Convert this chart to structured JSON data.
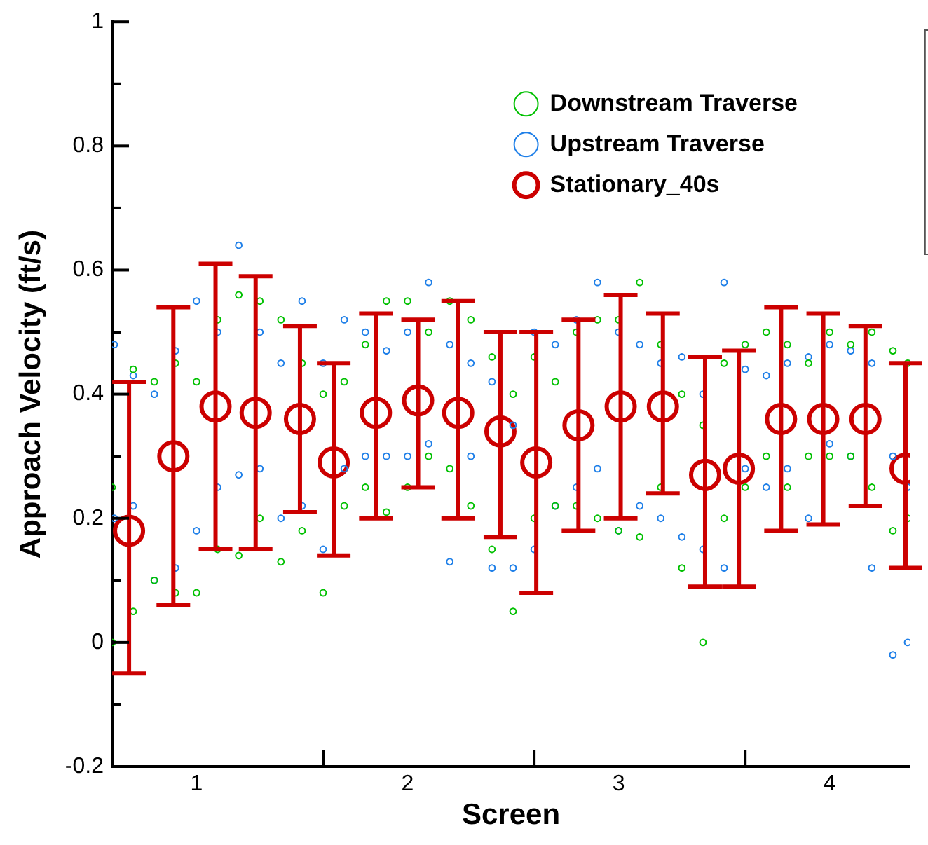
{
  "chart_data": {
    "type": "scatter",
    "xlabel": "Screen",
    "ylabel": "Approach Velocity (ft/s)",
    "xlim": [
      0.6,
      4.38
    ],
    "ylim": [
      -0.2,
      1
    ],
    "xticks": [
      1,
      {
        "value": 1.6,
        "label": null
      },
      2,
      {
        "value": 2.6,
        "label": null
      },
      3,
      {
        "value": 3.6,
        "label": null
      },
      4
    ],
    "yticks": [
      -0.2,
      {
        "value": -0.1,
        "label": null
      },
      0,
      {
        "value": 0.1,
        "label": null
      },
      0.2,
      {
        "value": 0.3,
        "label": null
      },
      0.4,
      {
        "value": 0.5,
        "label": null
      },
      0.6,
      {
        "value": 0.7,
        "label": null
      },
      0.8,
      {
        "value": 0.9,
        "label": null
      },
      1
    ],
    "legend": "top right",
    "marker": "circle",
    "series": [
      {
        "name": "Downstream Traverse",
        "color": "#00c000",
        "x": [
          0.6,
          0.6,
          0.7,
          0.7,
          0.8,
          0.8,
          0.9,
          0.9,
          1,
          1,
          1.1,
          1.1,
          1.2,
          1.2,
          1.3,
          1.3,
          1.4,
          1.4,
          1.5,
          1.5,
          1.6,
          1.6,
          1.7,
          1.7,
          1.8,
          1.8,
          1.9,
          1.9,
          2,
          2,
          2.1,
          2.1,
          2.2,
          2.2,
          2.3,
          2.3,
          2.4,
          2.4,
          2.5,
          2.5,
          2.6,
          2.6,
          2.7,
          2.7,
          2.8,
          2.8,
          2.9,
          2.9,
          3,
          3,
          3.1,
          3.1,
          3.2,
          3.2,
          3.3,
          3.3,
          3.4,
          3.4,
          3.5,
          3.5,
          3.6,
          3.6,
          3.7,
          3.7,
          3.8,
          3.8,
          3.9,
          3.9,
          4,
          4,
          4.1,
          4.1,
          4.2,
          4.2,
          4.3,
          4.3,
          4.37,
          4.37
        ],
        "values": [
          0.25,
          0,
          0.44,
          0.05,
          0.42,
          0.1,
          0.45,
          0.08,
          0.42,
          0.08,
          0.52,
          0.15,
          0.56,
          0.14,
          0.55,
          0.2,
          0.52,
          0.13,
          0.45,
          0.18,
          0.4,
          0.08,
          0.42,
          0.22,
          0.48,
          0.25,
          0.55,
          0.21,
          0.55,
          0.25,
          0.5,
          0.3,
          0.55,
          0.28,
          0.52,
          0.22,
          0.46,
          0.15,
          0.4,
          0.05,
          0.46,
          0.2,
          0.42,
          0.22,
          0.5,
          0.22,
          0.52,
          0.2,
          0.52,
          0.18,
          0.58,
          0.17,
          0.48,
          0.25,
          0.4,
          0.12,
          0.35,
          0,
          0.45,
          0.2,
          0.48,
          0.25,
          0.5,
          0.3,
          0.48,
          0.25,
          0.45,
          0.3,
          0.5,
          0.3,
          0.48,
          0.3,
          0.5,
          0.25,
          0.47,
          0.18,
          0.45,
          0.2
        ]
      },
      {
        "name": "Upstream Traverse",
        "color": "#1e7fe8",
        "x": [
          0.61,
          0.61,
          0.7,
          0.7,
          0.8,
          0.8,
          0.9,
          0.9,
          1,
          1,
          1.1,
          1.1,
          1.2,
          1.2,
          1.3,
          1.3,
          1.4,
          1.4,
          1.5,
          1.5,
          1.6,
          1.6,
          1.7,
          1.7,
          1.8,
          1.8,
          1.9,
          1.9,
          2,
          2,
          2.1,
          2.1,
          2.2,
          2.2,
          2.3,
          2.3,
          2.4,
          2.4,
          2.5,
          2.5,
          2.6,
          2.6,
          2.7,
          2.7,
          2.8,
          2.8,
          2.9,
          2.9,
          3,
          3,
          3.1,
          3.1,
          3.2,
          3.2,
          3.3,
          3.3,
          3.4,
          3.4,
          3.5,
          3.5,
          3.6,
          3.6,
          3.7,
          3.7,
          3.8,
          3.8,
          3.9,
          3.9,
          4,
          4,
          4.1,
          4.1,
          4.2,
          4.2,
          4.3,
          4.3,
          4.37,
          4.37
        ],
        "values": [
          0.48,
          0.2,
          0.43,
          0.22,
          0.4,
          0.1,
          0.47,
          0.12,
          0.55,
          0.18,
          0.5,
          0.25,
          0.64,
          0.27,
          0.5,
          0.28,
          0.45,
          0.2,
          0.55,
          0.22,
          0.45,
          0.15,
          0.52,
          0.28,
          0.5,
          0.3,
          0.47,
          0.3,
          0.5,
          0.3,
          0.58,
          0.32,
          0.48,
          0.13,
          0.45,
          0.3,
          0.42,
          0.12,
          0.35,
          0.12,
          0.5,
          0.15,
          0.48,
          0.22,
          0.52,
          0.25,
          0.58,
          0.28,
          0.5,
          0.18,
          0.48,
          0.22,
          0.45,
          0.2,
          0.46,
          0.17,
          0.4,
          0.15,
          0.58,
          0.12,
          0.44,
          0.28,
          0.43,
          0.25,
          0.45,
          0.28,
          0.46,
          0.2,
          0.48,
          0.32,
          0.47,
          0.3,
          0.45,
          0.12,
          0.3,
          -0.02,
          0.25,
          0
        ]
      },
      {
        "name": "Stationary_40s",
        "color": "#cc0000",
        "x": [
          0.68,
          0.89,
          1.09,
          1.28,
          1.49,
          1.65,
          1.85,
          2.05,
          2.24,
          2.44,
          2.61,
          2.81,
          3.01,
          3.21,
          3.41,
          3.57,
          3.77,
          3.97,
          4.17,
          4.36
        ],
        "values": [
          0.18,
          0.3,
          0.38,
          0.37,
          0.36,
          0.29,
          0.37,
          0.39,
          0.37,
          0.34,
          0.29,
          0.35,
          0.38,
          0.38,
          0.27,
          0.28,
          0.36,
          0.36,
          0.36,
          0.28
        ],
        "errors": [
          [
            -0.05,
            0.42
          ],
          [
            0.06,
            0.54
          ],
          [
            0.15,
            0.61
          ],
          [
            0.15,
            0.59
          ],
          [
            0.21,
            0.51
          ],
          [
            0.14,
            0.45
          ],
          [
            0.2,
            0.53
          ],
          [
            0.25,
            0.52
          ],
          [
            0.2,
            0.55
          ],
          [
            0.17,
            0.5
          ],
          [
            0.08,
            0.5
          ],
          [
            0.18,
            0.52
          ],
          [
            0.2,
            0.56
          ],
          [
            0.24,
            0.53
          ],
          [
            0.09,
            0.46
          ],
          [
            0.09,
            0.47
          ],
          [
            0.18,
            0.54
          ],
          [
            0.19,
            0.53
          ],
          [
            0.22,
            0.51
          ],
          [
            0.12,
            0.45
          ]
        ]
      }
    ]
  }
}
